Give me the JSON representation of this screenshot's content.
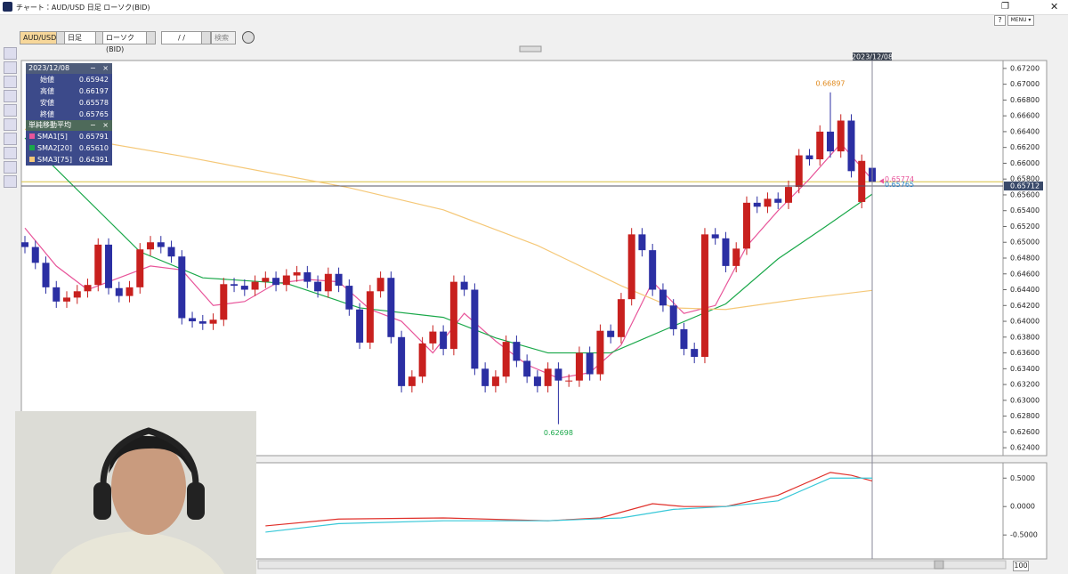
{
  "window": {
    "title": "チャート：AUD/USD 日足 ローソク(BID)",
    "help": "?",
    "menu": "MENU ▾"
  },
  "toolbar": {
    "symbol": "AUD/USD",
    "timeframe": "日足",
    "chart_type": "ローソク(BID)",
    "date": "/ /",
    "search": "検索"
  },
  "info_panel": {
    "rows": [
      [
        "始値",
        "0.65942"
      ],
      [
        "高値",
        "0.66197"
      ],
      [
        "安値",
        "0.65578"
      ],
      [
        "終値",
        "0.65765"
      ]
    ],
    "sma_title": "単純移動平均",
    "sma_rows": [
      [
        "SMA1[5]",
        "0.65791"
      ],
      [
        "SMA2[20]",
        "0.65610"
      ],
      [
        "SMA3[75]",
        "0.64391"
      ]
    ]
  },
  "scrollbar": {
    "zoom": "100"
  },
  "chart_data": [
    {
      "type": "candlestick",
      "categories": [
        null,
        null,
        null,
        null,
        null,
        null,
        null,
        null,
        null,
        null,
        null,
        null,
        null,
        null,
        null,
        null,
        null,
        null,
        null,
        null,
        null,
        null,
        null,
        null,
        null,
        null,
        null,
        null,
        null,
        null,
        null,
        null,
        null,
        null,
        null,
        null,
        null,
        null,
        null,
        null,
        null,
        null,
        null,
        null,
        null,
        null,
        null,
        null,
        null,
        null,
        null,
        null,
        null,
        null,
        null,
        null,
        null,
        null,
        null,
        null,
        null,
        null,
        null,
        null,
        null,
        null,
        null,
        null,
        null,
        null,
        null,
        null,
        null,
        null,
        null,
        null,
        null,
        null,
        null,
        null,
        null,
        "2023/12/08"
      ],
      "series": [
        {
          "name": "AUD/USD",
          "up_color": "#c8201e",
          "down_color": "#2b2fa3",
          "open": [
            0.65,
            0.6494,
            0.6474,
            0.6443,
            0.6425,
            0.643,
            0.6438,
            0.6446,
            0.6497,
            0.6442,
            0.6432,
            0.6443,
            0.6491,
            0.65,
            0.6494,
            0.6482,
            0.6404,
            0.64,
            0.6397,
            0.6402,
            0.6447,
            0.6445,
            0.644,
            0.645,
            0.6455,
            0.6446,
            0.6458,
            0.6462,
            0.645,
            0.6438,
            0.646,
            0.6445,
            0.6415,
            0.6373,
            0.6438,
            0.6455,
            0.638,
            0.6318,
            0.633,
            0.6372,
            0.6387,
            0.6365,
            0.645,
            0.644,
            0.634,
            0.6318,
            0.633,
            0.6374,
            0.635,
            0.633,
            0.6318,
            0.634,
            0.6325,
            0.6325,
            0.636,
            0.6333,
            0.6388,
            0.638,
            0.6428,
            0.651,
            0.649,
            0.644,
            0.642,
            0.639,
            0.6365,
            0.6355,
            0.651,
            0.6505,
            0.647,
            0.6492,
            0.655,
            0.6545,
            0.6555,
            0.655,
            0.657,
            0.661,
            0.6605,
            0.664,
            0.6615,
            0.6654,
            0.6551,
            0.65942
          ],
          "high": [
            0.6508,
            0.6502,
            0.6482,
            0.6451,
            0.6438,
            0.6446,
            0.6454,
            0.6505,
            0.6505,
            0.645,
            0.6451,
            0.6499,
            0.6508,
            0.6508,
            0.6502,
            0.649,
            0.6412,
            0.6408,
            0.641,
            0.6455,
            0.6455,
            0.6453,
            0.6458,
            0.6463,
            0.6463,
            0.6466,
            0.647,
            0.647,
            0.6458,
            0.6468,
            0.6468,
            0.6453,
            0.6423,
            0.6446,
            0.6463,
            0.6463,
            0.6388,
            0.6338,
            0.638,
            0.6395,
            0.6395,
            0.6458,
            0.6458,
            0.6448,
            0.6348,
            0.6338,
            0.6382,
            0.6382,
            0.6358,
            0.6338,
            0.6348,
            0.6348,
            0.6333,
            0.6368,
            0.6368,
            0.6396,
            0.6396,
            0.6436,
            0.6518,
            0.6518,
            0.6498,
            0.6448,
            0.6428,
            0.6398,
            0.6373,
            0.6518,
            0.6518,
            0.6513,
            0.65,
            0.6558,
            0.6558,
            0.6563,
            0.6563,
            0.6578,
            0.6618,
            0.6618,
            0.6648,
            0.66897,
            0.6662,
            0.6662,
            0.6611,
            0.66197
          ],
          "low": [
            0.6486,
            0.6466,
            0.6435,
            0.6417,
            0.6417,
            0.6422,
            0.643,
            0.6438,
            0.6434,
            0.6424,
            0.6424,
            0.6435,
            0.6483,
            0.6486,
            0.6474,
            0.6396,
            0.6392,
            0.6389,
            0.6389,
            0.6394,
            0.6437,
            0.6432,
            0.6432,
            0.6442,
            0.6438,
            0.6438,
            0.645,
            0.6442,
            0.643,
            0.643,
            0.6437,
            0.6407,
            0.6365,
            0.6365,
            0.643,
            0.6372,
            0.631,
            0.631,
            0.6322,
            0.6364,
            0.6357,
            0.6357,
            0.6432,
            0.6332,
            0.631,
            0.631,
            0.6322,
            0.6342,
            0.6322,
            0.631,
            0.631,
            0.62698,
            0.6317,
            0.6317,
            0.6325,
            0.6325,
            0.6372,
            0.6372,
            0.642,
            0.6482,
            0.6432,
            0.6412,
            0.6382,
            0.6357,
            0.6347,
            0.6347,
            0.6497,
            0.6462,
            0.6462,
            0.6484,
            0.6537,
            0.6537,
            0.6542,
            0.6542,
            0.6562,
            0.6597,
            0.6597,
            0.6607,
            0.6607,
            0.6582,
            0.6543,
            0.65578
          ],
          "close": [
            0.6494,
            0.6474,
            0.6443,
            0.6425,
            0.643,
            0.6438,
            0.6446,
            0.6497,
            0.6442,
            0.6432,
            0.6443,
            0.6491,
            0.65,
            0.6494,
            0.6482,
            0.6404,
            0.64,
            0.6397,
            0.6402,
            0.6447,
            0.6445,
            0.644,
            0.645,
            0.6455,
            0.6446,
            0.6458,
            0.6462,
            0.645,
            0.6438,
            0.646,
            0.6445,
            0.6415,
            0.6373,
            0.6438,
            0.6455,
            0.638,
            0.6318,
            0.633,
            0.6372,
            0.6387,
            0.6365,
            0.645,
            0.644,
            0.634,
            0.6318,
            0.633,
            0.6374,
            0.635,
            0.633,
            0.6318,
            0.634,
            0.6325,
            0.6325,
            0.636,
            0.6333,
            0.6388,
            0.638,
            0.6428,
            0.651,
            0.649,
            0.644,
            0.642,
            0.639,
            0.6365,
            0.6355,
            0.651,
            0.6505,
            0.647,
            0.6492,
            0.655,
            0.6545,
            0.6555,
            0.655,
            0.657,
            0.661,
            0.6605,
            0.664,
            0.6615,
            0.6654,
            0.659,
            0.6603,
            0.65765
          ]
        }
      ],
      "lines": [
        {
          "name": "SMA1[5]",
          "color": "#e8559a",
          "x": [
            0,
            3,
            6,
            9,
            12,
            15,
            18,
            21,
            24,
            27,
            30,
            33,
            36,
            39,
            42,
            45,
            48,
            51,
            54,
            57,
            60,
            63,
            66,
            69,
            72,
            75,
            78,
            81
          ],
          "values": [
            0.6518,
            0.647,
            0.644,
            0.6455,
            0.647,
            0.6465,
            0.642,
            0.6425,
            0.6448,
            0.6453,
            0.645,
            0.6415,
            0.64,
            0.636,
            0.641,
            0.6375,
            0.6345,
            0.6328,
            0.6335,
            0.637,
            0.645,
            0.641,
            0.642,
            0.6495,
            0.654,
            0.658,
            0.6625,
            0.65791
          ]
        },
        {
          "name": "SMA2[20]",
          "color": "#1aa84a",
          "x": [
            0,
            11,
            17,
            25,
            32,
            40,
            45,
            50,
            56,
            62,
            67,
            72,
            77,
            81
          ],
          "values": [
            0.6632,
            0.6488,
            0.6455,
            0.6448,
            0.6417,
            0.6405,
            0.6379,
            0.636,
            0.636,
            0.6394,
            0.6422,
            0.6479,
            0.6524,
            0.6561
          ]
        },
        {
          "name": "SMA3[75]",
          "color": "#f5c878",
          "x": [
            0,
            15,
            31,
            40,
            49,
            57,
            62,
            67,
            74,
            81
          ],
          "values": [
            0.6643,
            0.6609,
            0.6569,
            0.6541,
            0.6496,
            0.6445,
            0.6417,
            0.6415,
            0.6428,
            0.64391
          ]
        }
      ],
      "annotations": [
        {
          "x": 77,
          "value": 0.66897,
          "color": "#e08a1e",
          "position": "above"
        },
        {
          "x": 51,
          "value": 0.62698,
          "color": "#1aa84a",
          "position": "below"
        }
      ],
      "price_line": {
        "value": 0.65765,
        "color": "#d8c040",
        "label_color": "#2a86c8"
      },
      "sma_marker": {
        "value": 0.65774,
        "color": "#e8559a"
      },
      "crosshair": {
        "value": 0.65712
      },
      "ylim": [
        0.623,
        0.673
      ],
      "yticks": [
        {
          "value": 0.624,
          "label": "0.62400"
        },
        {
          "value": 0.626,
          "label": "0.62600"
        },
        {
          "value": 0.628,
          "label": "0.62800"
        },
        {
          "value": 0.63,
          "label": "0.63000"
        },
        {
          "value": 0.632,
          "label": "0.63200"
        },
        {
          "value": 0.634,
          "label": "0.63400"
        },
        {
          "value": 0.636,
          "label": "0.63600"
        },
        {
          "value": 0.638,
          "label": "0.63800"
        },
        {
          "value": 0.64,
          "label": "0.64000"
        },
        {
          "value": 0.642,
          "label": "0.64200"
        },
        {
          "value": 0.644,
          "label": "0.64400"
        },
        {
          "value": 0.646,
          "label": "0.64600"
        },
        {
          "value": 0.648,
          "label": "0.64800"
        },
        {
          "value": 0.65,
          "label": "0.65000"
        },
        {
          "value": 0.652,
          "label": "0.65200"
        },
        {
          "value": 0.654,
          "label": "0.65400"
        },
        {
          "value": 0.656,
          "label": "0.65600"
        },
        {
          "value": 0.658,
          "label": "0.65800"
        },
        {
          "value": 0.66,
          "label": "0.66000"
        },
        {
          "value": 0.662,
          "label": "0.66200"
        },
        {
          "value": 0.664,
          "label": "0.66400"
        },
        {
          "value": 0.666,
          "label": "0.66600"
        },
        {
          "value": 0.668,
          "label": "0.66800"
        },
        {
          "value": 0.67,
          "label": "0.67000"
        },
        {
          "value": 0.672,
          "label": "0.67200"
        }
      ]
    },
    {
      "type": "line",
      "lines": [
        {
          "color": "#e0302a",
          "x": [
            23,
            30,
            40,
            50,
            55,
            60,
            63,
            67,
            72,
            77,
            79,
            81
          ],
          "values": [
            -0.34,
            -0.22,
            -0.2,
            -0.25,
            -0.2,
            0.05,
            0.0,
            0.0,
            0.2,
            0.6,
            0.55,
            0.45
          ]
        },
        {
          "color": "#38c8d8",
          "x": [
            23,
            30,
            40,
            50,
            57,
            62,
            67,
            72,
            77,
            81
          ],
          "values": [
            -0.45,
            -0.3,
            -0.25,
            -0.25,
            -0.2,
            -0.05,
            0.0,
            0.1,
            0.5,
            0.5
          ]
        }
      ],
      "ylim": [
        -0.92,
        0.77
      ],
      "yticks": [
        {
          "value": 0.5,
          "label": "0.5000"
        },
        {
          "value": 0,
          "label": "0.0000"
        },
        {
          "value": -0.5,
          "label": "-0.5000"
        }
      ]
    }
  ]
}
